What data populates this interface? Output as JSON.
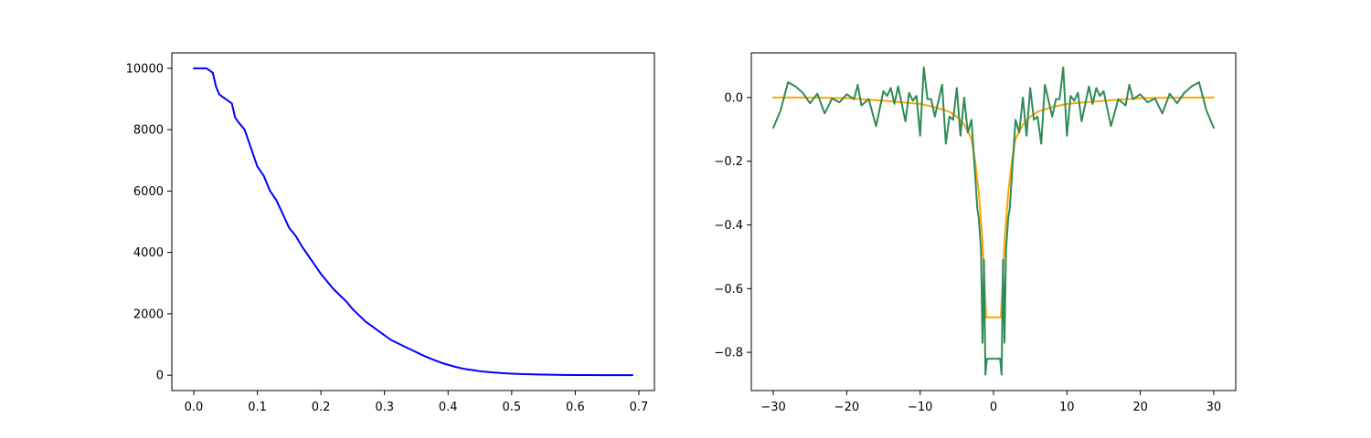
{
  "chart_data": [
    {
      "type": "line",
      "title": "",
      "xlabel": "",
      "ylabel": "",
      "xlim": [
        -0.0345,
        0.7245
      ],
      "ylim": [
        -500,
        10500
      ],
      "xticks": [
        0.0,
        0.1,
        0.2,
        0.3,
        0.4,
        0.5,
        0.6,
        0.7
      ],
      "xtick_labels": [
        "0.0",
        "0.1",
        "0.2",
        "0.3",
        "0.4",
        "0.5",
        "0.6",
        "0.7"
      ],
      "yticks": [
        0,
        2000,
        4000,
        6000,
        8000,
        10000
      ],
      "ytick_labels": [
        "0",
        "2000",
        "4000",
        "6000",
        "8000",
        "10000"
      ],
      "grid": false,
      "series": [
        {
          "color": "#0000ff",
          "x": [
            0.0,
            0.02,
            0.03,
            0.035,
            0.04,
            0.05,
            0.06,
            0.065,
            0.07,
            0.08,
            0.09,
            0.1,
            0.11,
            0.12,
            0.13,
            0.14,
            0.15,
            0.16,
            0.17,
            0.18,
            0.19,
            0.2,
            0.21,
            0.22,
            0.23,
            0.24,
            0.25,
            0.26,
            0.27,
            0.28,
            0.29,
            0.3,
            0.31,
            0.32,
            0.33,
            0.34,
            0.35,
            0.36,
            0.37,
            0.38,
            0.39,
            0.4,
            0.41,
            0.42,
            0.43,
            0.44,
            0.45,
            0.46,
            0.47,
            0.48,
            0.49,
            0.5,
            0.52,
            0.54,
            0.56,
            0.58,
            0.6,
            0.62,
            0.65,
            0.69
          ],
          "y": [
            10000,
            10000,
            9850,
            9400,
            9150,
            9000,
            8850,
            8400,
            8250,
            8000,
            7400,
            6800,
            6500,
            6000,
            5700,
            5250,
            4800,
            4550,
            4200,
            3900,
            3600,
            3300,
            3050,
            2800,
            2600,
            2400,
            2150,
            1950,
            1750,
            1600,
            1450,
            1300,
            1150,
            1050,
            950,
            850,
            750,
            650,
            560,
            480,
            400,
            340,
            280,
            230,
            190,
            160,
            130,
            110,
            90,
            75,
            60,
            50,
            35,
            25,
            15,
            10,
            6,
            4,
            2,
            1
          ]
        }
      ]
    },
    {
      "type": "line",
      "title": "",
      "xlabel": "",
      "ylabel": "",
      "xlim": [
        -33,
        33
      ],
      "ylim": [
        -0.92,
        0.14
      ],
      "xticks": [
        -30,
        -20,
        -10,
        0,
        10,
        20,
        30
      ],
      "xtick_labels": [
        "−30",
        "−20",
        "−10",
        "0",
        "10",
        "20",
        "30"
      ],
      "yticks": [
        0.0,
        -0.2,
        -0.4,
        -0.6,
        -0.8
      ],
      "ytick_labels": [
        "0.0",
        "−0.2",
        "−0.4",
        "−0.6",
        "−0.8"
      ],
      "grid": false,
      "series": [
        {
          "color": "#ffa500",
          "x": [
            -30,
            -25,
            -20,
            -15,
            -10,
            -8,
            -6,
            -5,
            -4,
            -3,
            -2.5,
            -2,
            -1.5,
            -1.2,
            -1.0,
            1.0,
            1.2,
            1.5,
            2,
            2.5,
            3,
            4,
            5,
            6,
            8,
            10,
            15,
            20,
            25,
            30
          ],
          "y": [
            0.0,
            0.0,
            -0.002,
            -0.01,
            -0.02,
            -0.03,
            -0.045,
            -0.06,
            -0.085,
            -0.13,
            -0.2,
            -0.3,
            -0.45,
            -0.6,
            -0.69,
            -0.69,
            -0.6,
            -0.45,
            -0.3,
            -0.2,
            -0.13,
            -0.085,
            -0.06,
            -0.045,
            -0.03,
            -0.02,
            -0.01,
            -0.002,
            0.0,
            0.0
          ]
        },
        {
          "color": "#2e8b57",
          "x": [
            -30,
            -29,
            -28,
            -27,
            -26,
            -25,
            -24,
            -23,
            -22,
            -21,
            -20,
            -19,
            -18.5,
            -18,
            -17,
            -16,
            -15,
            -14.5,
            -14,
            -13.5,
            -13,
            -12,
            -11.5,
            -11,
            -10.5,
            -10,
            -9.5,
            -9,
            -8.5,
            -8,
            -7.5,
            -7,
            -6.5,
            -6,
            -5.5,
            -5,
            -4.5,
            -4,
            -3.5,
            -3,
            -2.5,
            -2.2,
            -2,
            -1.7,
            -1.5,
            -1.3,
            -1.1,
            -0.9,
            0.9,
            1.1,
            1.3,
            1.5,
            1.7,
            2,
            2.2,
            2.5,
            3,
            3.5,
            4,
            4.5,
            5,
            5.5,
            6,
            6.5,
            7,
            7.5,
            8,
            8.5,
            9,
            9.5,
            10,
            10.5,
            11,
            11.5,
            12,
            13,
            13.5,
            14,
            14.5,
            15,
            16,
            17,
            18,
            18.5,
            19,
            20,
            21,
            22,
            23,
            24,
            25,
            26,
            27,
            28,
            29,
            30
          ],
          "y": [
            -0.095,
            -0.04,
            0.048,
            0.035,
            0.015,
            -0.018,
            0.012,
            -0.05,
            -0.003,
            -0.015,
            0.01,
            -0.005,
            0.04,
            -0.025,
            -0.005,
            -0.09,
            0.02,
            0.005,
            0.03,
            -0.02,
            0.035,
            -0.075,
            0.015,
            -0.01,
            0.005,
            -0.12,
            0.095,
            -0.005,
            -0.005,
            -0.06,
            -0.01,
            0.04,
            -0.145,
            -0.06,
            -0.07,
            0.03,
            -0.12,
            0.0,
            -0.11,
            -0.07,
            -0.245,
            -0.35,
            -0.38,
            -0.48,
            -0.77,
            -0.51,
            -0.87,
            -0.82,
            -0.82,
            -0.87,
            -0.51,
            -0.77,
            -0.48,
            -0.38,
            -0.35,
            -0.245,
            -0.07,
            -0.11,
            0.0,
            -0.12,
            0.03,
            -0.07,
            -0.06,
            -0.145,
            0.04,
            -0.01,
            -0.06,
            -0.005,
            -0.005,
            0.095,
            -0.12,
            0.005,
            -0.01,
            0.015,
            -0.075,
            0.035,
            -0.02,
            0.03,
            0.005,
            0.02,
            -0.09,
            -0.005,
            -0.025,
            0.04,
            -0.005,
            0.01,
            -0.015,
            -0.003,
            -0.05,
            0.012,
            -0.018,
            0.015,
            0.035,
            0.048,
            -0.04,
            -0.095
          ]
        }
      ]
    }
  ]
}
